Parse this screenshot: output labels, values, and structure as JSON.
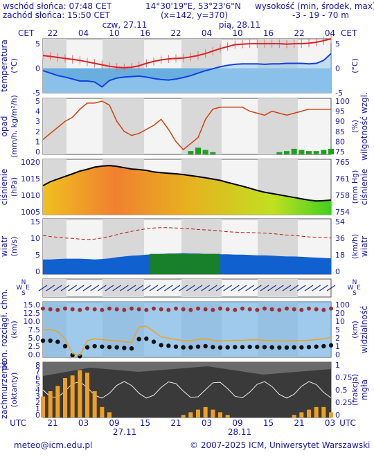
{
  "header": {
    "sunrise": "wschód słońca: 07:48 CET",
    "sunset": "zachód słońca: 15:50 CET",
    "coords": "14°30'19\"E, 53°23'6\"N",
    "grid": "(x=142,  y=370)",
    "altitude_label": "wysokość (min, środek, max)",
    "altitude_values": "-3 - 19 - 70 m"
  },
  "time_axis": {
    "tz": "CET",
    "day_labels": [
      "czw, 27.11",
      "pią, 28.11"
    ],
    "top_hours": [
      "22",
      "04",
      "10",
      "16",
      "22",
      "04",
      "10",
      "16",
      "22",
      "04"
    ],
    "bottom_hours": [
      "21",
      "03",
      "09",
      "15",
      "21",
      "03",
      "09",
      "15",
      "21",
      "03"
    ],
    "bottom_tz": "UTC",
    "bottom_dates": [
      "27.11",
      "28.11"
    ]
  },
  "panels": {
    "temperature": {
      "left_label": "temperatura",
      "left_unit": "(°C)",
      "right_unit": "(°C)",
      "ticks": [
        "5",
        "0",
        "-5"
      ]
    },
    "precip": {
      "left_label": "opad",
      "left_unit": "(mm/h, kg/m²/h)",
      "left_ticks": [
        "5",
        "4",
        "3",
        "2",
        "1",
        "0"
      ],
      "right_label": "wilgotność wzgl.",
      "right_unit": "(%)",
      "right_ticks": [
        "100",
        "95",
        "90",
        "85",
        "80",
        "75"
      ]
    },
    "pressure": {
      "left_label": "ciśnienie",
      "left_unit": "(hPa)",
      "left_ticks": [
        "1020",
        "1015",
        "1010",
        "1005"
      ],
      "right_label": "ciśnienie",
      "right_unit": "(mm Hg)",
      "right_ticks": [
        "765",
        "761",
        "758",
        "754"
      ]
    },
    "wind": {
      "left_label": "wiatr",
      "left_unit": "(m/s)",
      "left_ticks": [
        "15",
        "10",
        "5",
        "0"
      ],
      "right_label": "wiatr",
      "right_unit": "(km/h)",
      "right_ticks": [
        "54",
        "36",
        "18",
        "0"
      ]
    },
    "winddir": {
      "compass": [
        "N",
        "W",
        "E",
        "S"
      ]
    },
    "visibility": {
      "left_label": "pion. rozciągł. chm.",
      "left_unit": "(km)",
      "left_ticks": [
        "15.0",
        "12.5",
        "10.0",
        "7.5",
        "5.0",
        "2.5",
        "0.0"
      ],
      "right_label": "widzialność",
      "right_unit": "(km)",
      "right_ticks": [
        "100",
        "20",
        "10",
        "5",
        "2",
        "1",
        "0"
      ]
    },
    "clouds": {
      "left_label": "zachmurzenie",
      "left_unit": "(oktanty)",
      "left_ticks": [
        "8",
        "7",
        "6",
        "5",
        "4",
        "3",
        "2",
        "1",
        "0"
      ],
      "right_label": "mgła",
      "right_unit": "(frakcja)",
      "right_ticks": [
        "1",
        "0.75",
        "0.5",
        "0.25",
        "0"
      ]
    }
  },
  "footer": {
    "email": "meteo@icm.edu.pl",
    "copyright": "© 2007-2025 ICM, Uniwersytet Warszawski"
  },
  "colors": {
    "text": "#1a1aa0",
    "night": "#d8d8d8",
    "temp_max": "#e02020",
    "temp_line": "#1040e0",
    "humidity": "#d04010",
    "precip": "#20a020",
    "wind_gust": "#c01010",
    "wind_fill": "#1060d0",
    "vis_line": "#f0a020"
  },
  "chart_data": [
    {
      "type": "line",
      "title": "temperatura",
      "series": [
        {
          "name": "max",
          "values": [
            2.6,
            2.4,
            2.2,
            2.0,
            1.8,
            1.6,
            1.3,
            1.0,
            0.7,
            0.4,
            0.2,
            0.1,
            0.2,
            0.5,
            1.0,
            1.4,
            1.7,
            1.9,
            2.0,
            2.1,
            2.3,
            2.6,
            3.0,
            3.5,
            4.0,
            4.4,
            4.8,
            4.9,
            5.0,
            5.0,
            5.0,
            5.0,
            5.0,
            4.9,
            5.0,
            5.0,
            5.1,
            5.3,
            5.6,
            6.0
          ]
        },
        {
          "name": "mean",
          "values": [
            -0.5,
            -1.0,
            -1.5,
            -1.8,
            -2.2,
            -2.6,
            -2.6,
            -2.8,
            -3.8,
            -2.5,
            -2.0,
            -1.8,
            -1.7,
            -1.6,
            -1.8,
            -2.1,
            -2.3,
            -2.4,
            -2.2,
            -1.9,
            -1.5,
            -1.0,
            -0.5,
            -0.1,
            0.3,
            0.6,
            0.8,
            0.9,
            0.9,
            0.9,
            0.8,
            0.9,
            0.9,
            1.0,
            1.0,
            1.0,
            0.9,
            1.0,
            1.6,
            3.0
          ]
        }
      ],
      "ylim": [
        -5,
        6
      ]
    },
    {
      "type": "line",
      "title": "opad / wilgotność wzgl.",
      "series": [
        {
          "name": "wilgotność",
          "values": [
            81,
            84,
            87,
            90,
            92,
            96,
            99,
            99,
            100,
            98,
            90,
            85,
            83,
            84,
            86,
            88,
            91,
            86,
            80,
            76,
            79,
            82,
            91,
            96,
            97,
            97,
            97,
            97,
            95,
            94,
            93,
            95,
            94,
            93,
            94,
            95,
            96,
            96,
            96,
            96
          ]
        },
        {
          "name": "opad",
          "values": [
            0,
            0,
            0,
            0,
            0,
            0,
            0,
            0,
            0,
            0,
            0,
            0,
            0,
            0,
            0,
            0,
            0,
            0,
            0,
            0,
            0.3,
            0.6,
            0.4,
            0.2,
            0,
            0,
            0,
            0,
            0,
            0,
            0,
            0,
            0.2,
            0.3,
            0.5,
            0.4,
            0.3,
            0.3,
            0.4,
            0.5
          ]
        }
      ],
      "ylim": [
        0,
        5
      ]
    },
    {
      "type": "area",
      "title": "ciśnienie",
      "series": [
        {
          "name": "ciśnienie",
          "values": [
            1014,
            1015.5,
            1016.5,
            1017.5,
            1018.5,
            1019.5,
            1020.2,
            1021,
            1021.4,
            1021.6,
            1021.3,
            1020.8,
            1020.3,
            1020.1,
            1019.8,
            1019.2,
            1018.9,
            1018.7,
            1018.5,
            1018.2,
            1017.8,
            1017.4,
            1017,
            1016.5,
            1016,
            1015.2,
            1014.5,
            1013.8,
            1013,
            1012.2,
            1011.5,
            1011,
            1010.5,
            1010,
            1009.5,
            1009,
            1008.5,
            1008.2,
            1008.3,
            1008.5
          ]
        }
      ],
      "ylim": [
        1003,
        1024
      ]
    },
    {
      "type": "area",
      "title": "wiatr",
      "series": [
        {
          "name": "średni",
          "values": [
            4.0,
            4.0,
            4.1,
            4.2,
            4.2,
            4.2,
            4.1,
            4.0,
            4.1,
            4.3,
            4.6,
            4.8,
            5.0,
            5.1,
            5.3,
            5.4,
            5.5,
            5.6,
            5.6,
            5.7,
            5.6,
            5.6,
            5.5,
            5.5,
            5.4,
            5.4,
            5.3,
            5.3,
            5.2,
            5.1,
            5.1,
            5.0,
            4.9,
            4.8,
            4.8,
            4.7,
            4.6,
            4.5,
            4.4,
            4.3
          ]
        },
        {
          "name": "porywy",
          "values": [
            10.5,
            10.2,
            10.0,
            9.8,
            9.7,
            9.5,
            9.4,
            9.5,
            9.8,
            10.2,
            10.7,
            11.2,
            11.6,
            12.0,
            12.3,
            12.5,
            12.6,
            12.6,
            12.5,
            12.4,
            12.3,
            12.1,
            12.0,
            11.9,
            11.7,
            11.5,
            11.4,
            11.3,
            11.3,
            11.2,
            11.1,
            11.0,
            10.8,
            10.6,
            10.5,
            10.3,
            10.1,
            10.0,
            9.9,
            9.8
          ]
        }
      ],
      "ylim": [
        0,
        15
      ]
    },
    {
      "type": "scatter",
      "title": "pion. rozciągł. chm. / widzialność",
      "series": [
        {
          "name": "widzialność",
          "values": [
            7.5,
            7.5,
            7.0,
            5.0,
            1.0,
            0.5,
            4.5,
            5.0,
            4.8,
            4.6,
            4.5,
            4.2,
            4.0,
            8.2,
            8.4,
            7.0,
            5.5,
            5.2,
            4.8,
            4.5,
            4.5,
            4.8,
            5.0,
            4.6,
            4.4,
            4.5,
            4.6,
            4.6,
            4.7,
            4.7,
            4.6,
            4.5,
            4.4,
            4.4,
            4.5,
            4.5,
            4.6,
            4.8,
            5.0,
            5.4
          ]
        }
      ],
      "ylim": [
        0,
        15
      ]
    },
    {
      "type": "bar",
      "title": "zachmurzenie / mgła",
      "series": [
        {
          "name": "mgła",
          "values": [
            0.4,
            0.5,
            0.6,
            0.75,
            0.8,
            0.9,
            0.85,
            0.5,
            0.2,
            0.1,
            0,
            0,
            0,
            0,
            0,
            0,
            0,
            0,
            0,
            0.05,
            0.1,
            0.15,
            0.2,
            0.15,
            0.1,
            0.05,
            0,
            0,
            0,
            0,
            0,
            0,
            0,
            0,
            0.05,
            0.1,
            0.15,
            0.2,
            0.2,
            0.1
          ]
        }
      ],
      "ylim": [
        0,
        1
      ]
    }
  ]
}
